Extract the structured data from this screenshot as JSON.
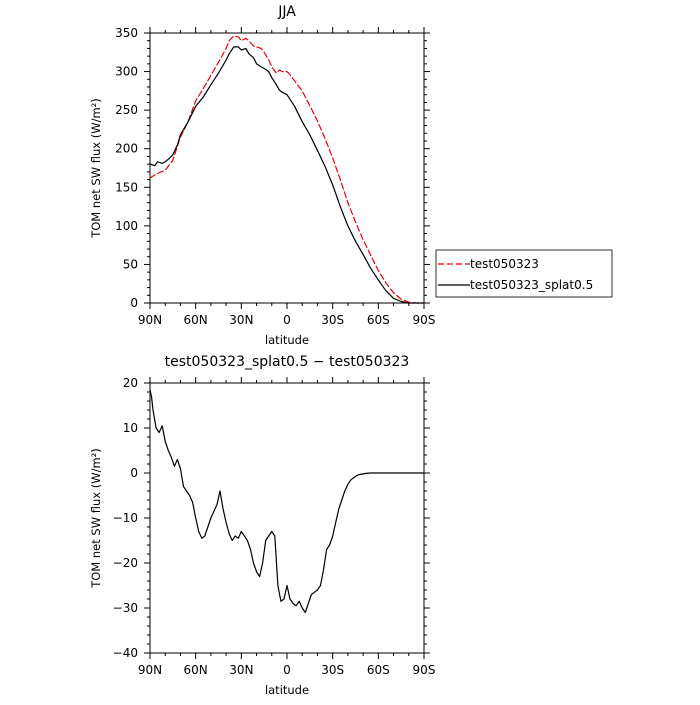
{
  "chart_data": [
    {
      "type": "line",
      "title": "JJA",
      "xlabel": "latitude",
      "ylabel": "TOM net SW flux (W/m²)",
      "x_ticks": [
        "90N",
        "60N",
        "30N",
        "0",
        "30S",
        "60S",
        "90S"
      ],
      "y_ticks": [
        "0",
        "50",
        "100",
        "150",
        "200",
        "250",
        "300",
        "350"
      ],
      "xlim": [
        90,
        -90
      ],
      "ylim": [
        0,
        350
      ],
      "grid": false,
      "legend_position": "right",
      "series": [
        {
          "name": "test050323",
          "color": "#e8000b",
          "style": "dashed",
          "x": [
            90,
            85,
            80,
            75,
            70,
            65,
            60,
            55,
            50,
            45,
            40,
            38,
            35,
            32,
            30,
            27,
            25,
            22,
            20,
            17,
            15,
            12,
            10,
            7,
            5,
            3,
            0,
            -2,
            -5,
            -10,
            -15,
            -20,
            -25,
            -30,
            -35,
            -40,
            -45,
            -50,
            -55,
            -60,
            -65,
            -70,
            -75,
            -80,
            -85,
            -90
          ],
          "y": [
            162,
            168,
            172,
            185,
            215,
            235,
            262,
            278,
            295,
            312,
            330,
            340,
            346,
            345,
            340,
            343,
            340,
            333,
            332,
            330,
            325,
            315,
            306,
            298,
            302,
            300,
            300,
            296,
            288,
            275,
            256,
            236,
            213,
            188,
            160,
            130,
            105,
            82,
            62,
            42,
            26,
            13,
            5,
            1,
            0,
            0
          ]
        },
        {
          "name": "test050323_splat0.5",
          "color": "#000000",
          "style": "solid",
          "x": [
            90,
            87,
            85,
            82,
            80,
            77,
            75,
            72,
            70,
            65,
            60,
            55,
            50,
            45,
            40,
            38,
            35,
            32,
            30,
            27,
            25,
            22,
            20,
            17,
            15,
            12,
            10,
            7,
            5,
            3,
            0,
            -5,
            -10,
            -15,
            -20,
            -25,
            -30,
            -35,
            -40,
            -45,
            -50,
            -55,
            -60,
            -65,
            -70,
            -75,
            -80,
            -85,
            -90
          ],
          "y": [
            180,
            178,
            183,
            181,
            183,
            188,
            192,
            205,
            218,
            235,
            255,
            267,
            283,
            298,
            315,
            323,
            332,
            332,
            328,
            330,
            323,
            318,
            310,
            306,
            304,
            300,
            292,
            283,
            276,
            273,
            270,
            255,
            235,
            218,
            198,
            177,
            153,
            125,
            100,
            80,
            63,
            45,
            30,
            16,
            6,
            2,
            0,
            0,
            0
          ]
        }
      ]
    },
    {
      "type": "line",
      "title": "test050323_splat0.5 − test050323",
      "xlabel": "latitude",
      "ylabel": "TOM net SW flux (W/m²)",
      "x_ticks": [
        "90N",
        "60N",
        "30N",
        "0",
        "30S",
        "60S",
        "90S"
      ],
      "y_ticks": [
        "−40",
        "−30",
        "−20",
        "−10",
        "0",
        "10",
        "20"
      ],
      "xlim": [
        90,
        -90
      ],
      "ylim": [
        -40,
        20
      ],
      "grid": false,
      "series": [
        {
          "name": "",
          "color": "#000000",
          "style": "solid",
          "x": [
            90,
            89,
            88,
            86,
            84,
            82,
            80,
            78,
            76,
            74,
            72,
            70,
            68,
            66,
            64,
            62,
            60,
            58,
            56,
            54,
            52,
            50,
            48,
            46,
            44,
            42,
            40,
            38,
            36,
            34,
            32,
            30,
            28,
            26,
            24,
            22,
            20,
            18,
            16,
            14,
            12,
            10,
            8,
            6,
            4,
            2,
            0,
            -2,
            -4,
            -6,
            -8,
            -10,
            -12,
            -14,
            -16,
            -18,
            -20,
            -22,
            -24,
            -26,
            -28,
            -30,
            -32,
            -34,
            -36,
            -38,
            -40,
            -42,
            -44,
            -46,
            -48,
            -50,
            -52,
            -55,
            -58,
            -60,
            -62,
            -65,
            -70,
            -75,
            -80,
            -85,
            -90
          ],
          "y": [
            18.5,
            17,
            14,
            10,
            9,
            10.5,
            7,
            5,
            3.5,
            1.5,
            3,
            1,
            -3,
            -4,
            -5,
            -6.5,
            -10,
            -13,
            -14.5,
            -14,
            -12,
            -10,
            -8.5,
            -7,
            -4,
            -8,
            -11,
            -13.5,
            -15,
            -14,
            -14.5,
            -13,
            -14,
            -15,
            -17,
            -20,
            -22,
            -23,
            -20,
            -15,
            -14,
            -13,
            -14,
            -25,
            -28.5,
            -28,
            -25,
            -28,
            -29,
            -29.5,
            -28.5,
            -30,
            -31,
            -29,
            -27,
            -26.5,
            -26,
            -25,
            -21.5,
            -17,
            -16,
            -14,
            -11,
            -8,
            -6,
            -4,
            -2.5,
            -1.5,
            -1,
            -0.5,
            -0.3,
            -0.2,
            -0.1,
            0,
            0,
            0,
            0,
            0,
            0,
            0,
            0,
            0,
            0
          ]
        }
      ]
    }
  ]
}
